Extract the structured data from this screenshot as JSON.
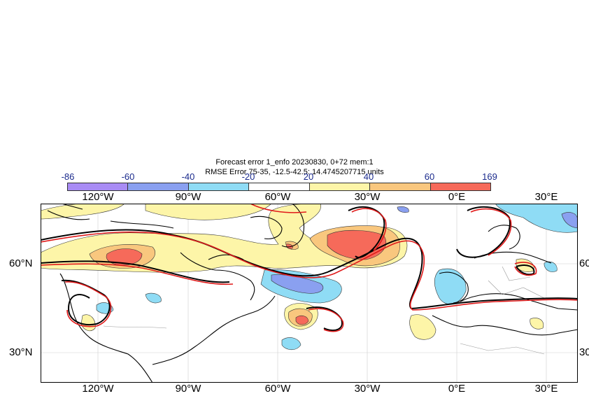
{
  "title_line1": "Forecast error  1_enfo 20230830, 0+72 mem:1",
  "title_line2": "RMSE Error 75-35, -12.5-42.5: 14.4745207715 units",
  "colorbar": {
    "ticks": [
      "-86",
      "-60",
      "-40",
      "-20",
      "20",
      "40",
      "60",
      "169"
    ],
    "colors": [
      "#a98cf5",
      "#8aa0f0",
      "#8fdcf5",
      "#ffffff",
      "#fdf5a8",
      "#f9c77e",
      "#f66a5a"
    ]
  },
  "axes": {
    "lon_labels": [
      "120°W",
      "90°W",
      "60°W",
      "30°W",
      "0°E",
      "30°E"
    ],
    "lat_labels": [
      "60°N",
      "30°N"
    ]
  },
  "map": {
    "ocean_color": "#ffffff",
    "contour_black": "#000000",
    "contour_red": "#e01a1a"
  }
}
